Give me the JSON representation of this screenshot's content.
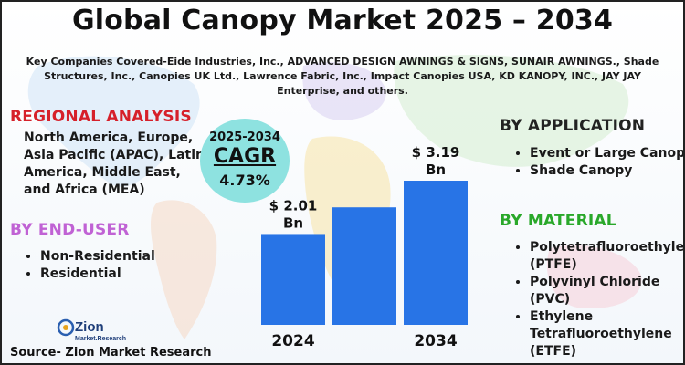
{
  "title": "Global Canopy Market 2025 – 2034",
  "key_companies": "Key Companies Covered-Eide Industries, Inc., ADVANCED DESIGN AWNINGS & SIGNS, SUNAIR AWNINGS., Shade Structures, Inc., Canopies UK Ltd., Lawrence Fabric, Inc., Impact Canopies USA, KD KANOPY, INC., JAY JAY Enterprise, and others.",
  "regional": {
    "heading": "REGIONAL ANALYSIS",
    "text": "North America, Europe, Asia Pacific (APAC), Latin America, Middle East, and Africa (MEA)"
  },
  "end_user": {
    "heading": "BY END-USER",
    "items": [
      "Non-Residential",
      "Residential"
    ]
  },
  "application": {
    "heading": "BY APPLICATION",
    "items": [
      "Event or Large Canopy",
      "Shade Canopy"
    ]
  },
  "material": {
    "heading": "BY MATERIAL",
    "items": [
      "Polytetrafluoroethylene (PTFE)",
      "Polyvinyl Chloride (PVC)",
      "Ethylene Tetrafluoroethylene (ETFE)"
    ]
  },
  "cagr": {
    "years": "2025-2034",
    "label": "CAGR",
    "value": "4.73%"
  },
  "logo": {
    "name": "Zion",
    "sub": "Market.Research"
  },
  "source": "Source- Zion Market Research",
  "colors": {
    "bar": "#2874e6",
    "bubble": "#8ee2e0",
    "regional": "#d6202a",
    "end_user": "#c062d4",
    "material": "#2aa82a"
  },
  "chart_data": {
    "type": "bar",
    "categories": [
      "2024",
      "",
      "2034"
    ],
    "values": [
      2.01,
      2.6,
      3.19
    ],
    "data_labels": [
      "$ 2.01\nBn",
      "",
      "$ 3.19\nBn"
    ],
    "unit": "USD Billion",
    "title": "",
    "xlabel": "",
    "ylabel": "",
    "grid": false,
    "legend": "none"
  }
}
